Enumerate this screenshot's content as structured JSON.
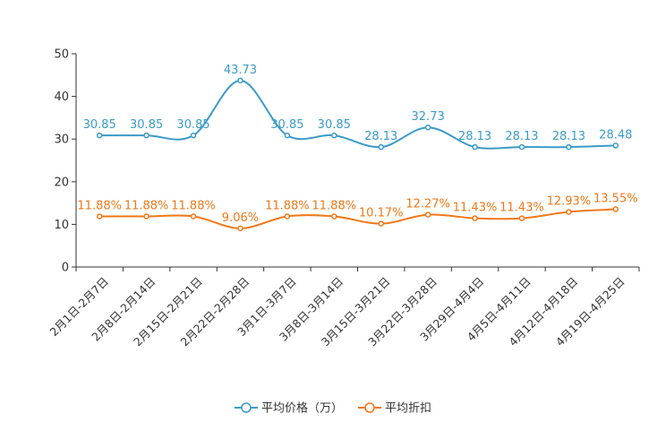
{
  "chart_data": {
    "type": "line",
    "categories": [
      "2月1日-2月7日",
      "2月8日-2月14日",
      "2月15日-2月21日",
      "2月22日-2月28日",
      "3月1日-3月7日",
      "3月8日-3月14日",
      "3月15日-3月21日",
      "3月22日-3月28日",
      "3月29日-4月4日",
      "4月5日-4月11日",
      "4月12日-4月18日",
      "4月19日-4月25日"
    ],
    "series": [
      {
        "name": "平均价格（万）",
        "color": "#3a9bc8",
        "values": [
          30.85,
          30.85,
          30.85,
          43.73,
          30.85,
          30.85,
          28.13,
          32.73,
          28.13,
          28.13,
          28.13,
          28.48
        ],
        "labels": [
          "30.85",
          "30.85",
          "30.85",
          "43.73",
          "30.85",
          "30.85",
          "28.13",
          "32.73",
          "28.13",
          "28.13",
          "28.13",
          "28.48"
        ]
      },
      {
        "name": "平均折扣",
        "color": "#f07818",
        "values": [
          11.88,
          11.88,
          11.88,
          9.06,
          11.88,
          11.88,
          10.17,
          12.27,
          11.43,
          11.43,
          12.93,
          13.55
        ],
        "labels": [
          "11.88%",
          "11.88%",
          "11.88%",
          "9.06%",
          "11.88%",
          "11.88%",
          "10.17%",
          "12.27%",
          "11.43%",
          "11.43%",
          "12.93%",
          "13.55%"
        ]
      }
    ],
    "yticks": [
      "0",
      "10",
      "20",
      "30",
      "40",
      "50"
    ],
    "ylim": [
      0,
      50
    ],
    "title": "",
    "xlabel": "",
    "ylabel": "",
    "grid": false,
    "legend_position": "bottom-center"
  }
}
